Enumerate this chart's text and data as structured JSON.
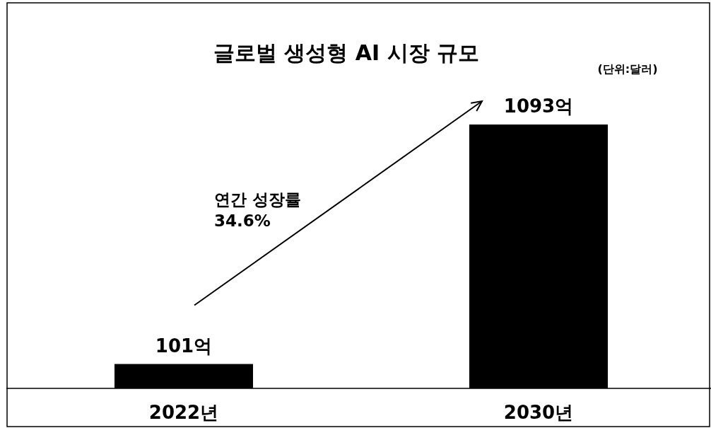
{
  "chart_data": {
    "type": "bar",
    "title": "글로벌 생성형 AI 시장 규모",
    "categories": [
      "2022년",
      "2030년"
    ],
    "values": [
      101,
      1093
    ],
    "value_labels": [
      "101억",
      "1093억"
    ],
    "color": "#000000",
    "annotations": [
      "(단위:달러)",
      "연간 성장률\n34.6%"
    ]
  }
}
